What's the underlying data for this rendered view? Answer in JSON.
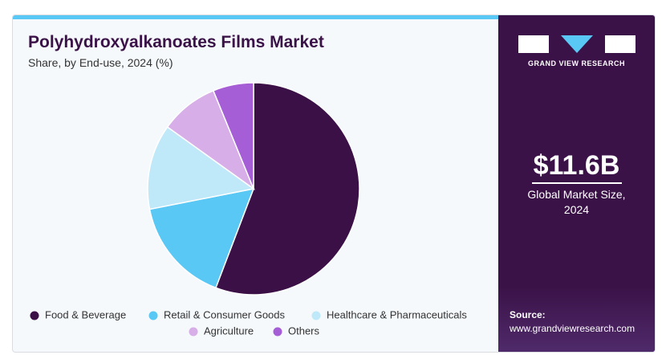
{
  "chart_data": {
    "type": "pie",
    "title": "Polyhydroxyalkanoates Films Market",
    "subtitle": "Share, by End-use, 2024 (%)",
    "categories": [
      "Food & Beverage",
      "Retail & Consumer Goods",
      "Healthcare & Pharmaceuticals",
      "Agriculture",
      "Others"
    ],
    "values": [
      55.8,
      16.1,
      13,
      8.9,
      6.2
    ],
    "colors": [
      "#3a1046",
      "#5ac8f5",
      "#bfe9f9",
      "#d7aee8",
      "#a55ed6"
    ]
  },
  "panel": {
    "brand": "GRAND VIEW RESEARCH",
    "market_size": "$11.6B",
    "market_label": "Global Market Size, 2024",
    "source_label": "Source:",
    "source_url": "www.grandviewresearch.com"
  }
}
